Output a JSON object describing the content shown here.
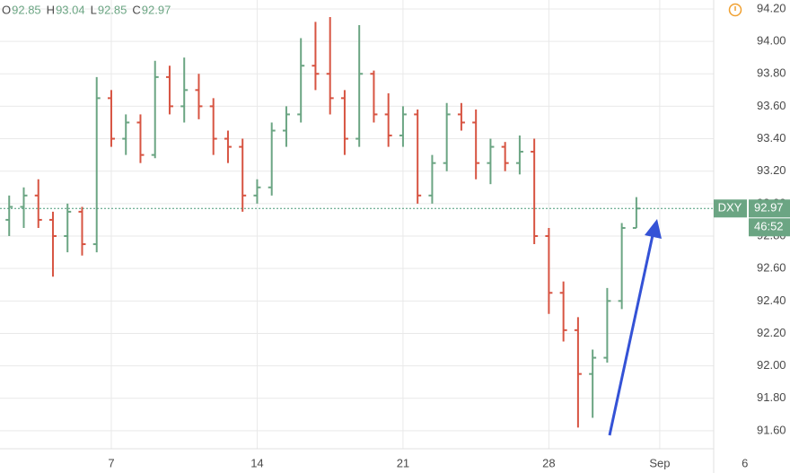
{
  "chart_data": {
    "type": "ohlc",
    "symbol": "DXY",
    "countdown": "46:52",
    "ohlc_labels": [
      "O",
      "H",
      "L",
      "C"
    ],
    "up_color": "#6ba583",
    "down_color": "#d75442",
    "grid": true,
    "x": [
      -3.5,
      -3,
      -2.5,
      -2,
      -1.5,
      -1,
      -0.5,
      0,
      0.5,
      1,
      1.5,
      2,
      2.5,
      3,
      3.5,
      4,
      4.5,
      5,
      5.5,
      6,
      6.5,
      7,
      7.5,
      8,
      8.5,
      9,
      9.5,
      10,
      10.5,
      11,
      11.5,
      12,
      12.5,
      13,
      13.5,
      14,
      14.5,
      15,
      15.5,
      16,
      16.5,
      17,
      17.5,
      18
    ],
    "open": [
      92.9,
      92.98,
      93.05,
      92.9,
      92.8,
      92.95,
      92.75,
      93.65,
      93.4,
      93.5,
      93.3,
      93.78,
      93.6,
      93.7,
      93.6,
      93.4,
      93.35,
      93.05,
      93.1,
      93.45,
      93.55,
      93.85,
      93.8,
      93.65,
      93.4,
      93.8,
      93.55,
      93.42,
      93.55,
      93.05,
      93.25,
      93.55,
      93.5,
      93.25,
      93.35,
      93.25,
      93.32,
      92.8,
      92.45,
      92.22,
      91.95,
      92.05,
      92.4,
      92.85
    ],
    "high": [
      93.05,
      93.1,
      93.15,
      92.95,
      93.0,
      92.98,
      93.78,
      93.7,
      93.55,
      93.55,
      93.88,
      93.85,
      93.9,
      93.8,
      93.65,
      93.45,
      93.4,
      93.15,
      93.5,
      93.6,
      94.02,
      94.12,
      94.15,
      93.7,
      94.1,
      93.82,
      93.68,
      93.6,
      93.58,
      93.3,
      93.62,
      93.62,
      93.58,
      93.4,
      93.38,
      93.42,
      93.4,
      92.85,
      92.52,
      92.3,
      92.1,
      92.48,
      92.88,
      93.04
    ],
    "low": [
      92.8,
      92.85,
      92.85,
      92.55,
      92.7,
      92.68,
      92.7,
      93.35,
      93.3,
      93.25,
      93.28,
      93.55,
      93.5,
      93.52,
      93.3,
      93.25,
      92.95,
      93.0,
      93.05,
      93.35,
      93.5,
      93.7,
      93.55,
      93.3,
      93.35,
      93.5,
      93.35,
      93.35,
      93.0,
      93.0,
      93.2,
      93.45,
      93.15,
      93.12,
      93.2,
      93.18,
      92.75,
      92.32,
      92.15,
      91.62,
      91.68,
      92.02,
      92.35,
      92.85
    ],
    "close": [
      92.98,
      93.05,
      92.9,
      92.8,
      92.95,
      92.75,
      93.65,
      93.4,
      93.5,
      93.3,
      93.78,
      93.6,
      93.7,
      93.6,
      93.4,
      93.35,
      93.05,
      93.1,
      93.45,
      93.55,
      93.85,
      93.8,
      93.65,
      93.4,
      93.8,
      93.55,
      93.42,
      93.55,
      93.05,
      93.25,
      93.55,
      93.5,
      93.25,
      93.35,
      93.25,
      93.32,
      92.8,
      92.45,
      92.22,
      91.95,
      92.05,
      92.4,
      92.85,
      92.97
    ],
    "xlim": [
      -3.815,
      20.65
    ],
    "xticks": [
      {
        "value": 0,
        "label": "7"
      },
      {
        "value": 5,
        "label": "14"
      },
      {
        "value": 10,
        "label": "21"
      },
      {
        "value": 15,
        "label": "28"
      },
      {
        "value": 18.8,
        "label": "Sep"
      },
      {
        "value": 21.72,
        "label": "6"
      }
    ],
    "ylim": [
      91.489,
      94.255
    ],
    "yticks": [
      {
        "value": 91.6,
        "label": "91.60"
      },
      {
        "value": 91.8,
        "label": "91.80"
      },
      {
        "value": 92.0,
        "label": "92.00"
      },
      {
        "value": 92.2,
        "label": "92.20"
      },
      {
        "value": 92.4,
        "label": "92.40"
      },
      {
        "value": 92.6,
        "label": "92.60"
      },
      {
        "value": 92.8,
        "label": "92.80"
      },
      {
        "value": 93.0,
        "label": "93.00"
      },
      {
        "value": 93.2,
        "label": "93.20"
      },
      {
        "value": 93.4,
        "label": "93.40"
      },
      {
        "value": 93.6,
        "label": "93.60"
      },
      {
        "value": 93.8,
        "label": "93.80"
      },
      {
        "value": 94.0,
        "label": "94.00"
      },
      {
        "value": 94.2,
        "label": "94.20"
      }
    ]
  }
}
